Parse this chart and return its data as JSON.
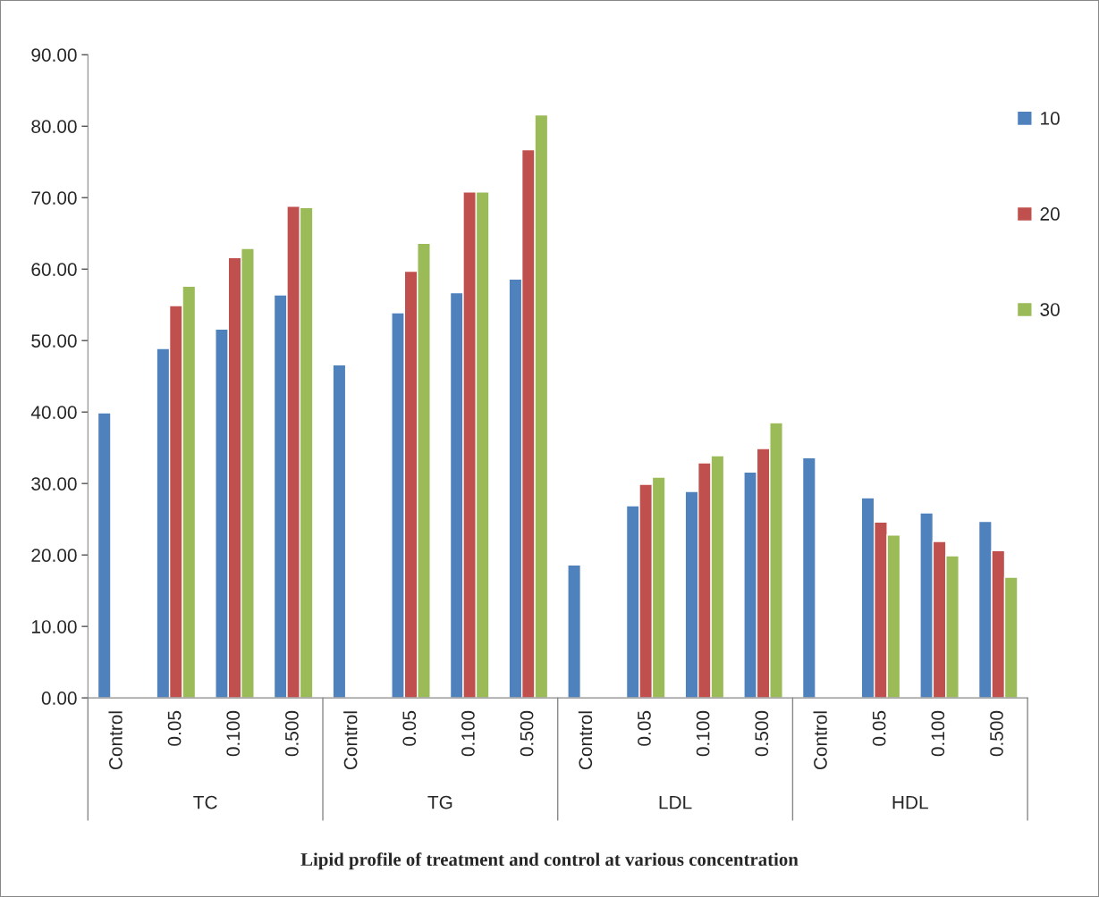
{
  "chart_data": {
    "type": "bar",
    "title": "Lipid profile of treatment and control at various concentration",
    "categories": [
      "Control",
      "0.05",
      "0.100",
      "0.500",
      "Control",
      "0.05",
      "0.100",
      "0.500",
      "Control",
      "0.05",
      "0.100",
      "0.500",
      "Control",
      "0.05",
      "0.100",
      "0.500"
    ],
    "annotations": [
      "TC",
      "TG",
      "LDL",
      "HDL"
    ],
    "series": [
      {
        "name": "10",
        "color": "#4f81bd",
        "values": [
          39.9,
          48.9,
          51.6,
          56.4,
          46.6,
          53.9,
          56.7,
          58.6,
          18.6,
          26.9,
          28.9,
          31.6,
          33.6,
          28.0,
          25.9,
          24.7
        ]
      },
      {
        "name": "20",
        "color": "#c0504d",
        "values": [
          null,
          54.9,
          61.6,
          68.8,
          null,
          59.7,
          70.8,
          76.7,
          null,
          29.9,
          32.9,
          34.9,
          null,
          24.6,
          21.9,
          20.6
        ]
      },
      {
        "name": "30",
        "color": "#9bbb59",
        "values": [
          null,
          57.6,
          62.9,
          68.6,
          null,
          63.6,
          70.8,
          81.6,
          null,
          30.9,
          33.9,
          38.5,
          null,
          22.8,
          19.9,
          16.9
        ]
      }
    ],
    "ylim": [
      0,
      90
    ],
    "yticks": [
      {
        "value": 0,
        "label": "0.00"
      },
      {
        "value": 10,
        "label": "10.00"
      },
      {
        "value": 20,
        "label": "20.00"
      },
      {
        "value": 30,
        "label": "30.00"
      },
      {
        "value": 40,
        "label": "40.00"
      },
      {
        "value": 50,
        "label": "50.00"
      },
      {
        "value": 60,
        "label": "60.00"
      },
      {
        "value": 70,
        "label": "70.00"
      },
      {
        "value": 80,
        "label": "80.00"
      },
      {
        "value": 90,
        "label": "90.00"
      }
    ],
    "grid": false,
    "legend": "right"
  }
}
